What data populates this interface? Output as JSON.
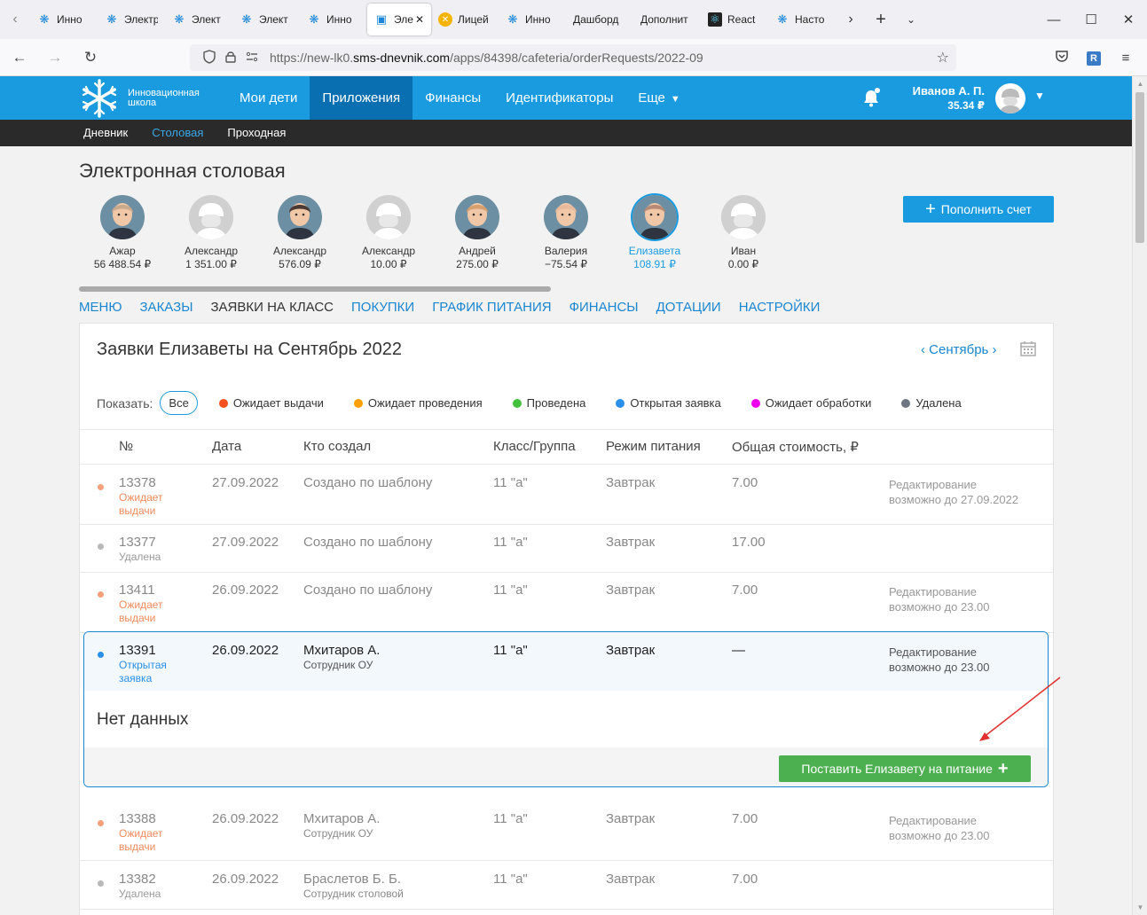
{
  "browser": {
    "tabs": [
      {
        "label": "Инно",
        "icon": "snowflake-icon"
      },
      {
        "label": "Электр",
        "icon": "snowflake-icon"
      },
      {
        "label": "Элект",
        "icon": "snowflake-icon"
      },
      {
        "label": "Элект",
        "icon": "snowflake-icon"
      },
      {
        "label": "Инно",
        "icon": "snowflake-icon"
      },
      {
        "label": "Эле",
        "icon": "book-icon",
        "active": true
      },
      {
        "label": "Лицей",
        "icon": "x-circle-icon"
      },
      {
        "label": "Инно",
        "icon": "snowflake-icon"
      },
      {
        "label": "Дашборд",
        "icon": ""
      },
      {
        "label": "Дополнит",
        "icon": ""
      },
      {
        "label": "React",
        "icon": "react-icon"
      },
      {
        "label": "Насто",
        "icon": "snowflake-icon"
      }
    ],
    "url_prefix": "https://new-lk0.",
    "url_domain": "sms-dnevnik.com",
    "url_path": "/apps/84398/cafeteria/orderRequests/2022-09"
  },
  "header": {
    "logo_line1": "Инновационная",
    "logo_line2": "школа",
    "nav": [
      "Мои дети",
      "Приложения",
      "Финансы",
      "Идентификаторы",
      "Еще"
    ],
    "active_nav": 1,
    "user_name": "Иванов А. П.",
    "user_balance": "35.34 ₽"
  },
  "subnav": {
    "items": [
      "Дневник",
      "Столовая",
      "Проходная"
    ],
    "active": 1
  },
  "page": {
    "title": "Электронная столовая",
    "topup_label": "Пополнить счет"
  },
  "kids": [
    {
      "name": "Ажар",
      "balance": "56 488.54 ₽",
      "photo": true,
      "tone": "#c9a98c"
    },
    {
      "name": "Александр",
      "balance": "1 351.00 ₽",
      "photo": false
    },
    {
      "name": "Александр",
      "balance": "576.09 ₽",
      "photo": true,
      "tone": "#4a3a33"
    },
    {
      "name": "Александр",
      "balance": "10.00 ₽",
      "photo": false
    },
    {
      "name": "Андрей",
      "balance": "275.00 ₽",
      "photo": true,
      "tone": "#d7a06f"
    },
    {
      "name": "Валерия",
      "balance": "−75.54 ₽",
      "photo": true,
      "tone": "#e8b99b"
    },
    {
      "name": "Елизавета",
      "balance": "108.91 ₽",
      "photo": true,
      "tone": "#b68a74",
      "selected": true
    },
    {
      "name": "Иван",
      "balance": "0.00 ₽",
      "photo": false
    }
  ],
  "section_tabs": [
    "МЕНЮ",
    "ЗАКАЗЫ",
    "ЗАЯВКИ НА КЛАСС",
    "ПОКУПКИ",
    "ГРАФИК ПИТАНИЯ",
    "ФИНАНСЫ",
    "ДОТАЦИИ",
    "НАСТРОЙКИ"
  ],
  "active_section": 2,
  "panel": {
    "title": "Заявки Елизаветы на Сентябрь 2022",
    "month": "Сентябрь",
    "filter_label": "Показать:",
    "filter_all": "Все",
    "filters": [
      {
        "label": "Ожидает выдачи",
        "color": "#f4511e"
      },
      {
        "label": "Ожидает проведения",
        "color": "#ffa000"
      },
      {
        "label": "Проведена",
        "color": "#43c13b"
      },
      {
        "label": "Открытая заявка",
        "color": "#2a8fe8"
      },
      {
        "label": "Ожидает обработки",
        "color": "#ee00ee"
      },
      {
        "label": "Удалена",
        "color": "#6e7781"
      }
    ],
    "columns": [
      "№",
      "Дата",
      "Кто создал",
      "Класс/Группа",
      "Режим питания",
      "Общая стоимость, ₽"
    ],
    "rows": [
      {
        "num": "13378",
        "status1": "Ожидает",
        "status2": "выдачи",
        "status_color": "#f08a5d",
        "bullet": "#f4a07a",
        "date": "27.09.2022",
        "creator": "Создано по шаблону",
        "creator_sub": "",
        "cls": "11 \"а\"",
        "mode": "Завтрак",
        "cost": "7.00",
        "note1": "Редактирование",
        "note2": "возможно до 27.09.2022"
      },
      {
        "num": "13377",
        "status1": "Удалена",
        "status2": "",
        "status_color": "#999999",
        "bullet": "#b8b8b8",
        "date": "27.09.2022",
        "creator": "Создано по шаблону",
        "creator_sub": "",
        "cls": "11 \"а\"",
        "mode": "Завтрак",
        "cost": "17.00",
        "note1": "",
        "note2": ""
      },
      {
        "num": "13411",
        "status1": "Ожидает",
        "status2": "выдачи",
        "status_color": "#f08a5d",
        "bullet": "#f4a07a",
        "date": "26.09.2022",
        "creator": "Создано по шаблону",
        "creator_sub": "",
        "cls": "11 \"а\"",
        "mode": "Завтрак",
        "cost": "7.00",
        "note1": "Редактирование",
        "note2": "возможно до 23.00"
      }
    ],
    "open_row": {
      "num": "13391",
      "status1": "Открытая",
      "status2": "заявка",
      "date": "26.09.2022",
      "creator": "Мхитаров А.",
      "creator_sub": "Сотрудник ОУ",
      "cls": "11 \"а\"",
      "mode": "Завтрак",
      "cost": "—",
      "note1": "Редактирование",
      "note2": "возможно до 23.00"
    },
    "empty_text": "Нет данных",
    "enroll_button": "Поставить Елизавету на питание",
    "rows_after": [
      {
        "num": "13388",
        "status1": "Ожидает",
        "status2": "выдачи",
        "status_color": "#f08a5d",
        "bullet": "#f4a07a",
        "date": "26.09.2022",
        "creator": "Мхитаров А.",
        "creator_sub": "Сотрудник ОУ",
        "cls": "11 \"а\"",
        "mode": "Завтрак",
        "cost": "7.00",
        "note1": "Редактирование",
        "note2": "возможно до 23.00"
      },
      {
        "num": "13382",
        "status1": "Удалена",
        "status2": "",
        "status_color": "#999999",
        "bullet": "#b8b8b8",
        "date": "26.09.2022",
        "creator": "Браслетов Б. Б.",
        "creator_sub": "Сотрудник столовой",
        "cls": "11 \"а\"",
        "mode": "Завтрак",
        "cost": "7.00",
        "note1": "",
        "note2": ""
      }
    ]
  }
}
